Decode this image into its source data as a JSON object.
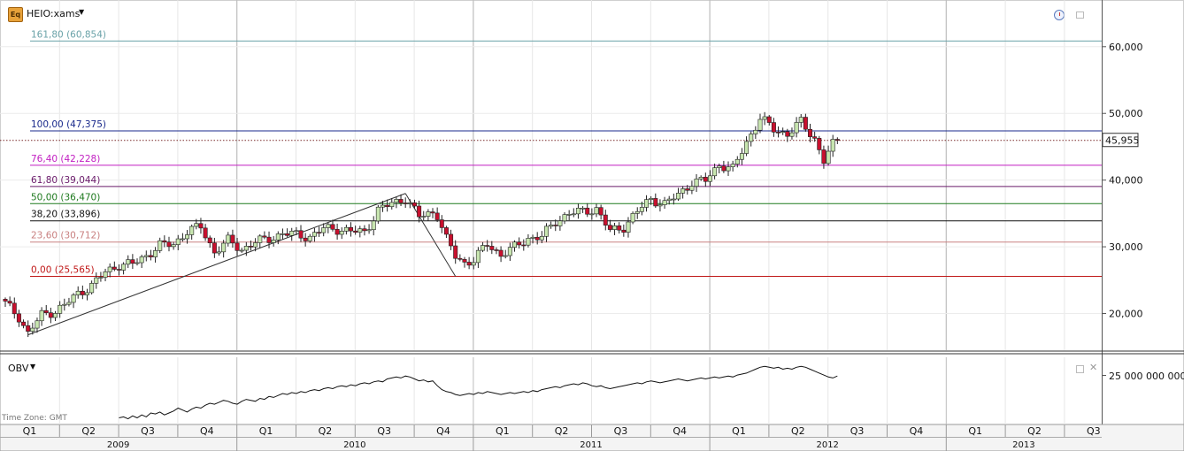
{
  "header": {
    "eq_badge": "Eq",
    "symbol": "HEIO:xams",
    "caret": "▼"
  },
  "chart_data": {
    "type": "candlestick",
    "title": "HEIO:xams",
    "ylim": [
      14500,
      67000
    ],
    "y_ticks": [
      "20,000",
      "30,000",
      "40,000",
      "50,000",
      "60,000"
    ],
    "y_tick_values": [
      20000,
      30000,
      40000,
      50000,
      60000
    ],
    "last_price": 45955,
    "last_price_label": "45,955",
    "time_axis": {
      "quarters": [
        "Q1",
        "Q2",
        "Q3",
        "Q4",
        "Q1",
        "Q2",
        "Q3",
        "Q4",
        "Q1",
        "Q2",
        "Q3",
        "Q4",
        "Q1",
        "Q2",
        "Q3",
        "Q4",
        "Q1",
        "Q2",
        "Q3"
      ],
      "years": [
        "2009",
        "2010",
        "2011",
        "2012",
        "2013"
      ]
    },
    "fibonacci_levels": [
      {
        "label": "161,80 (60,854)",
        "value": 60854,
        "color": "#6aa2a8"
      },
      {
        "label": "100,00 (47,375)",
        "value": 47375,
        "color": "#1a2a8c"
      },
      {
        "label": "76,40 (42,228)",
        "value": 42228,
        "color": "#c21fc2"
      },
      {
        "label": "61,80 (39,044)",
        "value": 39044,
        "color": "#6a1a6a"
      },
      {
        "label": "50,00 (36,470)",
        "value": 36470,
        "color": "#1f7a1f"
      },
      {
        "label": "38,20 (33,896)",
        "value": 33896,
        "color": "#111111"
      },
      {
        "label": "23,60 (30,712)",
        "value": 30712,
        "color": "#c98080"
      },
      {
        "label": "0,00 (25,565)",
        "value": 25565,
        "color": "#c01818"
      }
    ],
    "price_path": [
      [
        0,
        21500
      ],
      [
        3,
        19500
      ],
      [
        5,
        17000
      ],
      [
        8,
        19800
      ],
      [
        11,
        20400
      ],
      [
        13,
        21200
      ],
      [
        16,
        23000
      ],
      [
        19,
        24200
      ],
      [
        22,
        26200
      ],
      [
        25,
        27300
      ],
      [
        28,
        27400
      ],
      [
        31,
        28700
      ],
      [
        34,
        30200
      ],
      [
        37,
        30400
      ],
      [
        40,
        32300
      ],
      [
        43,
        33000
      ],
      [
        46,
        29200
      ],
      [
        49,
        30900
      ],
      [
        52,
        29600
      ],
      [
        55,
        30700
      ],
      [
        58,
        31200
      ],
      [
        61,
        32000
      ],
      [
        64,
        31800
      ],
      [
        67,
        31500
      ],
      [
        70,
        32700
      ],
      [
        73,
        32700
      ],
      [
        76,
        32300
      ],
      [
        79,
        32200
      ],
      [
        82,
        35500
      ],
      [
        85,
        36500
      ],
      [
        88,
        37300
      ],
      [
        91,
        34500
      ],
      [
        94,
        35200
      ],
      [
        95,
        34800
      ],
      [
        97,
        31100
      ],
      [
        99,
        28600
      ],
      [
        101,
        27600
      ],
      [
        103,
        28000
      ],
      [
        106,
        30400
      ],
      [
        109,
        28800
      ],
      [
        112,
        29900
      ],
      [
        115,
        31300
      ],
      [
        118,
        31500
      ],
      [
        121,
        33800
      ],
      [
        124,
        35000
      ],
      [
        127,
        35300
      ],
      [
        130,
        35700
      ],
      [
        133,
        32300
      ],
      [
        136,
        33000
      ],
      [
        139,
        35300
      ],
      [
        142,
        37200
      ],
      [
        145,
        36400
      ],
      [
        148,
        37800
      ],
      [
        151,
        39700
      ],
      [
        154,
        39900
      ],
      [
        157,
        42400
      ],
      [
        160,
        41600
      ],
      [
        163,
        45700
      ],
      [
        166,
        49300
      ],
      [
        169,
        47600
      ],
      [
        172,
        46900
      ],
      [
        175,
        48700
      ],
      [
        178,
        46200
      ],
      [
        180,
        42900
      ],
      [
        182,
        45300
      ],
      [
        183,
        45955
      ]
    ],
    "trend_lines": [
      {
        "from": [
          5,
          16800
        ],
        "to": [
          88,
          38000
        ]
      },
      {
        "from": [
          88,
          38000
        ],
        "to": [
          99,
          25565
        ]
      }
    ],
    "obv": {
      "title": "OBV",
      "tick_label": "25 000 000 000",
      "series": [
        [
          25,
          5
        ],
        [
          26,
          6
        ],
        [
          27,
          4
        ],
        [
          28,
          7
        ],
        [
          29,
          5
        ],
        [
          30,
          8
        ],
        [
          31,
          6
        ],
        [
          32,
          10
        ],
        [
          33,
          9
        ],
        [
          34,
          11
        ],
        [
          35,
          8
        ],
        [
          36,
          10
        ],
        [
          37,
          12
        ],
        [
          38,
          15
        ],
        [
          39,
          13
        ],
        [
          40,
          11
        ],
        [
          41,
          14
        ],
        [
          42,
          16
        ],
        [
          43,
          15
        ],
        [
          44,
          18
        ],
        [
          45,
          20
        ],
        [
          46,
          19
        ],
        [
          47,
          21
        ],
        [
          48,
          23
        ],
        [
          49,
          22
        ],
        [
          50,
          20
        ],
        [
          51,
          19
        ],
        [
          52,
          22
        ],
        [
          53,
          24
        ],
        [
          54,
          23
        ],
        [
          55,
          22
        ],
        [
          56,
          25
        ],
        [
          57,
          24
        ],
        [
          58,
          27
        ],
        [
          59,
          26
        ],
        [
          60,
          28
        ],
        [
          61,
          30
        ],
        [
          62,
          29
        ],
        [
          63,
          31
        ],
        [
          64,
          30
        ],
        [
          65,
          32
        ],
        [
          66,
          31
        ],
        [
          67,
          33
        ],
        [
          68,
          34
        ],
        [
          69,
          33
        ],
        [
          70,
          35
        ],
        [
          71,
          36
        ],
        [
          72,
          35
        ],
        [
          73,
          37
        ],
        [
          74,
          38
        ],
        [
          75,
          37
        ],
        [
          76,
          39
        ],
        [
          77,
          38
        ],
        [
          78,
          40
        ],
        [
          79,
          41
        ],
        [
          80,
          40
        ],
        [
          81,
          42
        ],
        [
          82,
          43
        ],
        [
          83,
          42
        ],
        [
          84,
          45
        ],
        [
          85,
          46
        ],
        [
          86,
          47
        ],
        [
          87,
          46
        ],
        [
          88,
          48
        ],
        [
          89,
          47
        ],
        [
          90,
          45
        ],
        [
          91,
          43
        ],
        [
          92,
          44
        ],
        [
          93,
          42
        ],
        [
          94,
          43
        ],
        [
          95,
          38
        ],
        [
          96,
          34
        ],
        [
          97,
          32
        ],
        [
          98,
          31
        ],
        [
          99,
          29
        ],
        [
          100,
          28
        ],
        [
          101,
          29
        ],
        [
          102,
          30
        ],
        [
          103,
          29
        ],
        [
          104,
          31
        ],
        [
          105,
          30
        ],
        [
          106,
          32
        ],
        [
          107,
          31
        ],
        [
          108,
          30
        ],
        [
          109,
          29
        ],
        [
          110,
          30
        ],
        [
          111,
          31
        ],
        [
          112,
          30
        ],
        [
          113,
          31
        ],
        [
          114,
          32
        ],
        [
          115,
          31
        ],
        [
          116,
          33
        ],
        [
          117,
          32
        ],
        [
          118,
          34
        ],
        [
          119,
          35
        ],
        [
          120,
          36
        ],
        [
          121,
          37
        ],
        [
          122,
          36
        ],
        [
          123,
          38
        ],
        [
          124,
          39
        ],
        [
          125,
          40
        ],
        [
          126,
          39
        ],
        [
          127,
          41
        ],
        [
          128,
          40
        ],
        [
          129,
          38
        ],
        [
          130,
          37
        ],
        [
          131,
          38
        ],
        [
          132,
          36
        ],
        [
          133,
          35
        ],
        [
          134,
          36
        ],
        [
          135,
          37
        ],
        [
          136,
          38
        ],
        [
          137,
          39
        ],
        [
          138,
          40
        ],
        [
          139,
          41
        ],
        [
          140,
          40
        ],
        [
          141,
          42
        ],
        [
          142,
          43
        ],
        [
          143,
          42
        ],
        [
          144,
          41
        ],
        [
          145,
          42
        ],
        [
          146,
          43
        ],
        [
          147,
          44
        ],
        [
          148,
          45
        ],
        [
          149,
          44
        ],
        [
          150,
          43
        ],
        [
          151,
          44
        ],
        [
          152,
          45
        ],
        [
          153,
          46
        ],
        [
          154,
          45
        ],
        [
          155,
          46
        ],
        [
          156,
          47
        ],
        [
          157,
          46
        ],
        [
          158,
          47
        ],
        [
          159,
          48
        ],
        [
          160,
          47
        ],
        [
          161,
          49
        ],
        [
          162,
          50
        ],
        [
          163,
          51
        ],
        [
          164,
          53
        ],
        [
          165,
          55
        ],
        [
          166,
          57
        ],
        [
          167,
          58
        ],
        [
          168,
          57
        ],
        [
          169,
          56
        ],
        [
          170,
          57
        ],
        [
          171,
          55
        ],
        [
          172,
          56
        ],
        [
          173,
          55
        ],
        [
          174,
          57
        ],
        [
          175,
          58
        ],
        [
          176,
          57
        ],
        [
          177,
          55
        ],
        [
          178,
          53
        ],
        [
          179,
          51
        ],
        [
          180,
          49
        ],
        [
          181,
          47
        ],
        [
          182,
          46
        ],
        [
          183,
          48
        ]
      ]
    }
  },
  "footer": {
    "timezone": "Time Zone: GMT"
  }
}
